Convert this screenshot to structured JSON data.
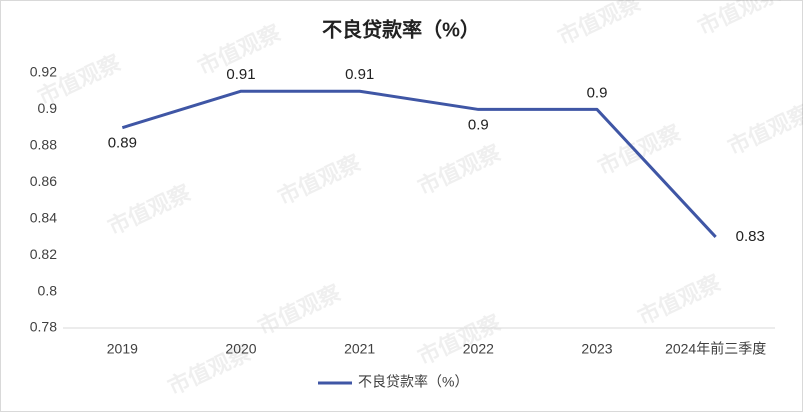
{
  "chart_data": {
    "type": "line",
    "title": "不良贷款率（%）",
    "categories": [
      "2019",
      "2020",
      "2021",
      "2022",
      "2023",
      "2024年前三季度"
    ],
    "series": [
      {
        "name": "不良贷款率（%）",
        "color": "#3f56a5",
        "values": [
          0.89,
          0.91,
          0.91,
          0.9,
          0.9,
          0.83
        ]
      }
    ],
    "ylim": [
      0.78,
      0.92
    ],
    "yticks": [
      0.78,
      0.8,
      0.82,
      0.84,
      0.86,
      0.88,
      0.9,
      0.92
    ],
    "grid": false,
    "legend": "bottom",
    "watermark": "市值观察"
  }
}
